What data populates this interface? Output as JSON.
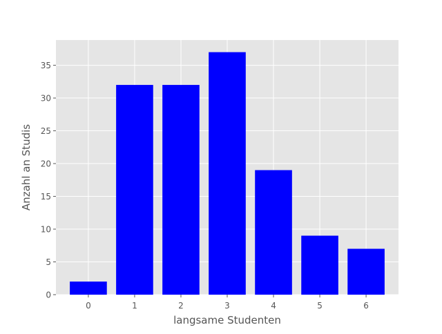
{
  "chart_data": {
    "type": "bar",
    "categories": [
      "0",
      "1",
      "2",
      "3",
      "4",
      "5",
      "6"
    ],
    "values": [
      2,
      32,
      32,
      37,
      19,
      9,
      7
    ],
    "title": "",
    "xlabel": "langsame Studenten",
    "ylabel": "Anzahl an Studis",
    "xlim": [
      -0.7,
      6.7
    ],
    "ylim": [
      0,
      38.85
    ],
    "yticks": [
      0,
      5,
      10,
      15,
      20,
      25,
      30,
      35
    ],
    "grid": true,
    "legend": "none",
    "colors": {
      "bar": "#0000ff",
      "plot_background": "#e5e5e5",
      "grid": "#ffffff",
      "text": "#555555"
    }
  }
}
